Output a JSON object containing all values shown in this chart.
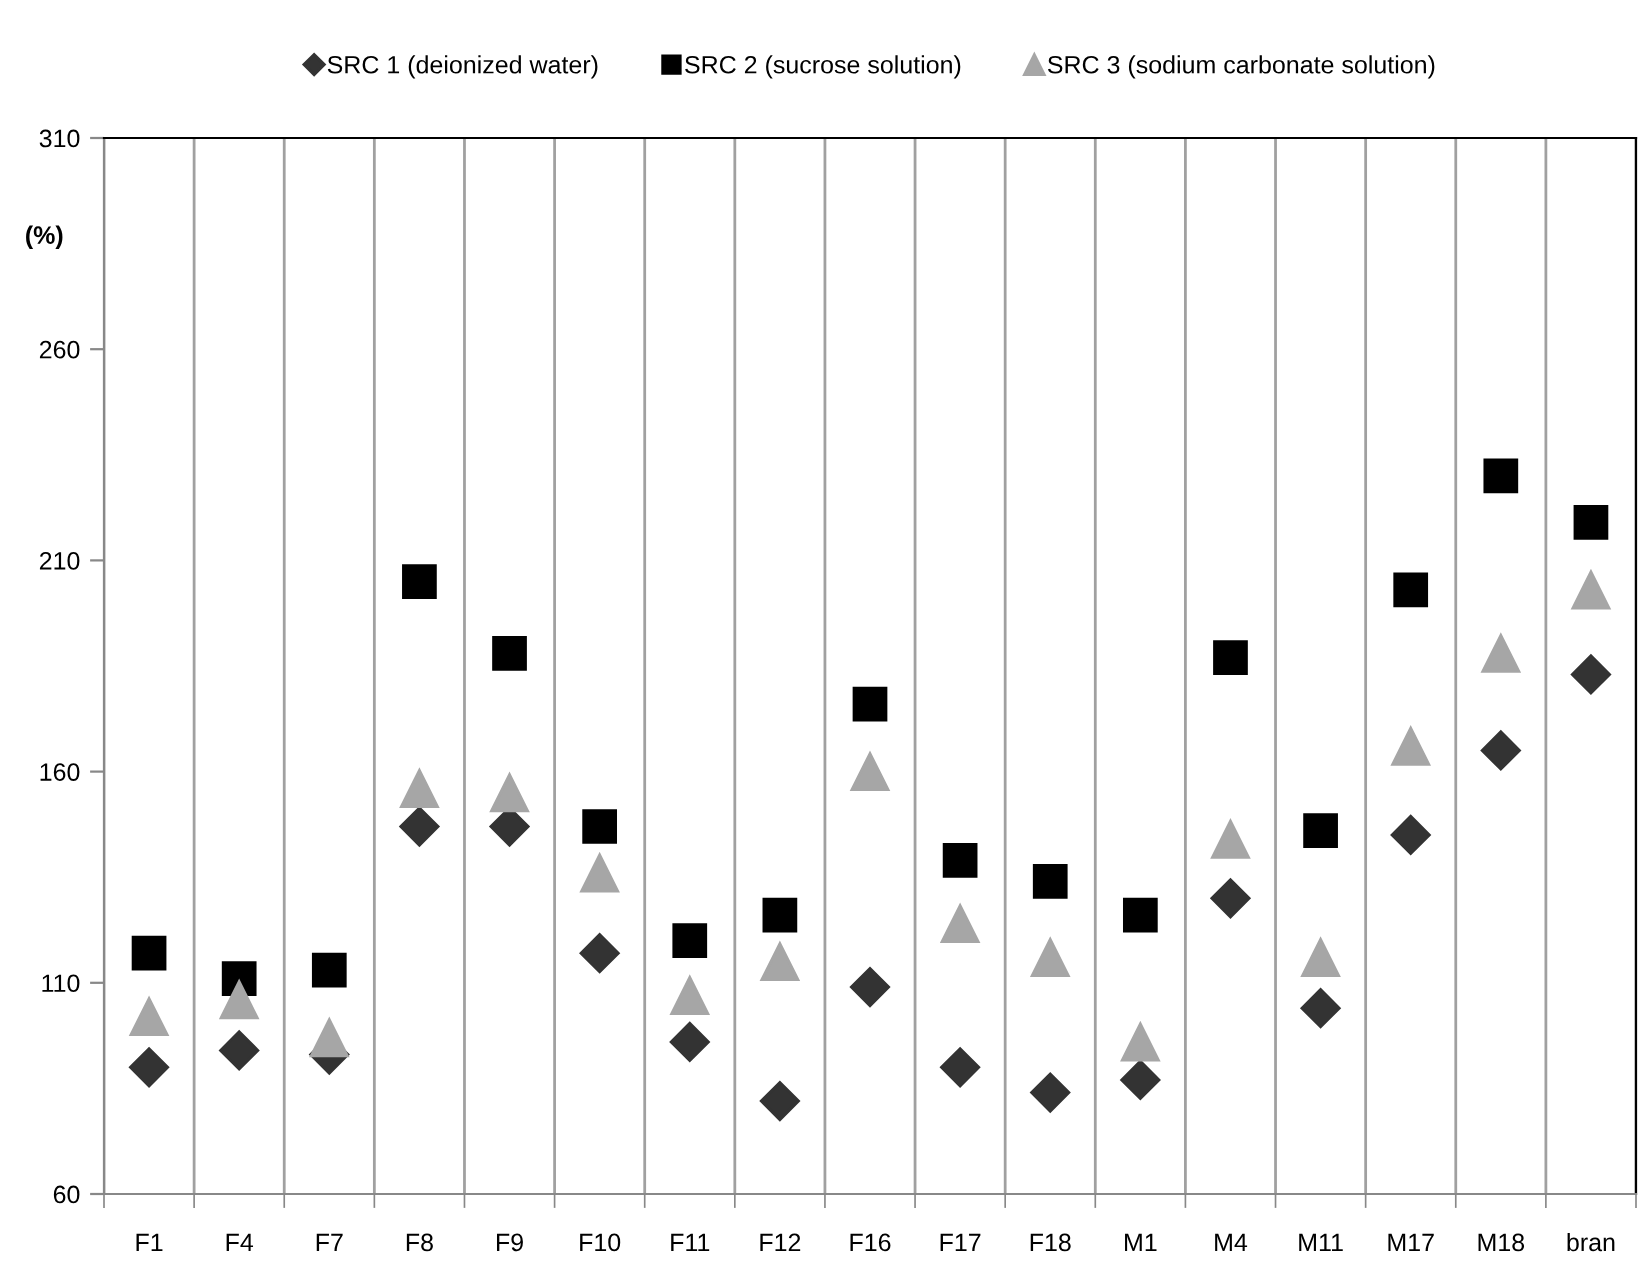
{
  "chart_data": {
    "type": "scatter",
    "ylabel": "(%)",
    "categories": [
      "F1",
      "F4",
      "F7",
      "F8",
      "F9",
      "F10",
      "F11",
      "F12",
      "F16",
      "F17",
      "F18",
      "M1",
      "M4",
      "M11",
      "M17",
      "M18",
      "bran"
    ],
    "series": [
      {
        "name": "SRC 1 (deionized water)",
        "color": "#333333",
        "marker": "diamond",
        "values": [
          90,
          94,
          93,
          147,
          147,
          117,
          96,
          82,
          109,
          90,
          84,
          87,
          130,
          104,
          145,
          165,
          183
        ]
      },
      {
        "name": "SRC 2 (sucrose solution)",
        "color": "#000000",
        "marker": "square",
        "values": [
          117,
          111,
          113,
          205,
          188,
          147,
          120,
          126,
          176,
          139,
          134,
          126,
          187,
          146,
          203,
          230,
          219
        ]
      },
      {
        "name": "SRC 3 (sodium carbonate solution)",
        "color": "#a6a6a6",
        "marker": "triangle",
        "values": [
          102,
          106,
          97,
          156,
          155,
          136,
          107,
          115,
          160,
          124,
          116,
          96,
          144,
          116,
          166,
          188,
          203
        ]
      }
    ],
    "ylim": [
      60,
      310
    ],
    "yticks": [
      60,
      110,
      160,
      210,
      260,
      310
    ],
    "grid": "x",
    "legend": "top"
  }
}
